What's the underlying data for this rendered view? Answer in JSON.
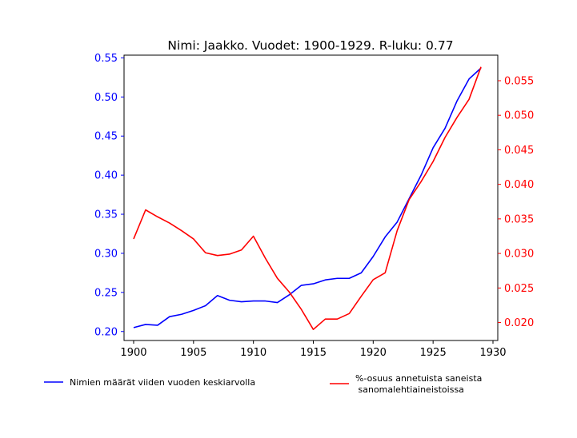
{
  "chart_data": {
    "type": "line",
    "title": "Nimi: Jaakko. Vuodet: 1900-1929. R-luku: 0.77",
    "x": [
      1900,
      1901,
      1902,
      1903,
      1904,
      1905,
      1906,
      1907,
      1908,
      1909,
      1910,
      1911,
      1912,
      1913,
      1914,
      1915,
      1916,
      1917,
      1918,
      1919,
      1920,
      1921,
      1922,
      1923,
      1924,
      1925,
      1926,
      1927,
      1928,
      1929
    ],
    "xlim": [
      1899.2,
      1930.4
    ],
    "x_ticks": [
      1900,
      1905,
      1910,
      1915,
      1920,
      1925,
      1930
    ],
    "grid": false,
    "legend_placement": "below",
    "series": [
      {
        "name": "Nimien määrät viiden vuoden keskiarvolla",
        "axis": "left",
        "color": "#0000ff",
        "values": [
          0.205,
          0.209,
          0.208,
          0.219,
          0.222,
          0.227,
          0.233,
          0.246,
          0.24,
          0.238,
          0.239,
          0.239,
          0.237,
          0.247,
          0.259,
          0.261,
          0.266,
          0.268,
          0.268,
          0.275,
          0.296,
          0.321,
          0.34,
          0.37,
          0.4,
          0.435,
          0.46,
          0.495,
          0.523,
          0.537
        ]
      },
      {
        "name": "%-osuus annetuista saneista\n sanomalehtiaineistoissa",
        "axis": "right",
        "color": "#ff0000",
        "values": [
          0.0321,
          0.0363,
          0.0353,
          0.0344,
          0.0333,
          0.0321,
          0.0301,
          0.0297,
          0.0299,
          0.0305,
          0.0325,
          0.0293,
          0.0264,
          0.0244,
          0.0219,
          0.019,
          0.0205,
          0.0205,
          0.0213,
          0.0238,
          0.0262,
          0.0272,
          0.0333,
          0.0378,
          0.0404,
          0.0433,
          0.0468,
          0.0497,
          0.0523,
          0.057
        ]
      }
    ],
    "y_left": {
      "color": "#0000ff",
      "ylim": [
        0.1885,
        0.5535
      ],
      "ticks": [
        "0.20",
        "0.25",
        "0.30",
        "0.35",
        "0.40",
        "0.45",
        "0.50",
        "0.55"
      ]
    },
    "y_right": {
      "color": "#ff0000",
      "ylim": [
        0.0174,
        0.0587
      ],
      "ticks": [
        "0.020",
        "0.025",
        "0.030",
        "0.035",
        "0.040",
        "0.045",
        "0.050",
        "0.055"
      ]
    }
  }
}
